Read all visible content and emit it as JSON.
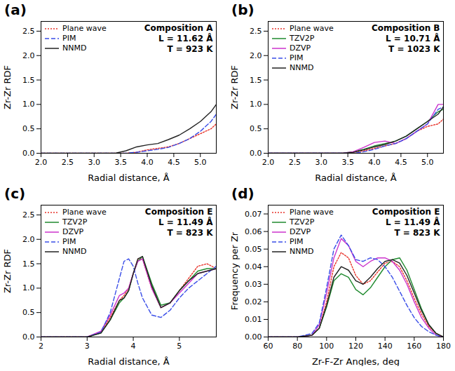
{
  "chart_data": [
    {
      "type": "line",
      "label": "(a)",
      "title": "Composition A",
      "annotations": [
        "L = 11.62 Å",
        "T = 923 K"
      ],
      "x_label": "Radial distance, Å",
      "y_label": "Zr-Zr RDF",
      "x": [
        2.0,
        3.0,
        3.4,
        3.6,
        3.8,
        4.0,
        4.2,
        4.4,
        4.6,
        4.8,
        5.0,
        5.2,
        5.3
      ],
      "series": [
        {
          "name": "Plane wave",
          "color": "#e8332a",
          "line_style": "dotted",
          "values": [
            0,
            0,
            0,
            0,
            0.02,
            0.07,
            0.1,
            0.13,
            0.2,
            0.3,
            0.4,
            0.5,
            0.6
          ]
        },
        {
          "name": "PIM",
          "color": "#3a4ee8",
          "line_style": "dashed",
          "values": [
            0,
            0,
            0,
            0,
            0.02,
            0.05,
            0.08,
            0.12,
            0.2,
            0.3,
            0.45,
            0.65,
            0.8
          ]
        },
        {
          "name": "NNMD",
          "color": "#222222",
          "line_style": "solid",
          "values": [
            0,
            0,
            0,
            0.05,
            0.13,
            0.17,
            0.2,
            0.28,
            0.37,
            0.5,
            0.65,
            0.85,
            1.0
          ]
        }
      ],
      "xlim": [
        2.0,
        5.3
      ],
      "xticks": [
        {
          "value": 2.0,
          "label": "2.0"
        },
        {
          "value": 2.5,
          "label": "2.5"
        },
        {
          "value": 3.0,
          "label": "3.0"
        },
        {
          "value": 3.5,
          "label": "3.5"
        },
        {
          "value": 4.0,
          "label": "4.0"
        },
        {
          "value": 4.5,
          "label": "4.5"
        },
        {
          "value": 5.0,
          "label": "5.0"
        }
      ],
      "ylim": [
        0,
        2.7
      ],
      "yticks": [
        {
          "value": 0,
          "label": "0.0"
        },
        {
          "value": 0.5,
          "label": "0.5"
        },
        {
          "value": 1.0,
          "label": "1.0"
        },
        {
          "value": 1.5,
          "label": "1.5"
        },
        {
          "value": 2.0,
          "label": "2.0"
        },
        {
          "value": 2.5,
          "label": "2.5"
        }
      ],
      "legend": "upper left",
      "grid": false
    },
    {
      "type": "line",
      "label": "(b)",
      "title": "Composition B",
      "annotations": [
        "L = 10.71 Å",
        "T = 1023 K"
      ],
      "x_label": "Radial distance, Å",
      "y_label": "Zr-Zr RDF",
      "x": [
        2.0,
        3.0,
        3.4,
        3.6,
        3.8,
        4.0,
        4.2,
        4.4,
        4.6,
        4.8,
        5.0,
        5.2,
        5.3
      ],
      "series": [
        {
          "name": "Plane wave",
          "color": "#e8332a",
          "line_style": "dotted",
          "values": [
            0,
            0,
            0,
            0.02,
            0.05,
            0.1,
            0.15,
            0.2,
            0.3,
            0.45,
            0.55,
            0.6,
            0.7
          ]
        },
        {
          "name": "TZV2P",
          "color": "#1f8a2e",
          "line_style": "solid",
          "values": [
            0,
            0,
            0,
            0.03,
            0.08,
            0.15,
            0.2,
            0.25,
            0.35,
            0.5,
            0.65,
            0.85,
            0.9
          ]
        },
        {
          "name": "DZVP",
          "color": "#cc33cc",
          "line_style": "solid",
          "values": [
            0,
            0,
            0,
            0.03,
            0.12,
            0.22,
            0.25,
            0.2,
            0.3,
            0.45,
            0.6,
            1.0,
            1.0
          ]
        },
        {
          "name": "PIM",
          "color": "#3a4ee8",
          "line_style": "dashed",
          "values": [
            0,
            0,
            0,
            0,
            0.03,
            0.08,
            0.15,
            0.2,
            0.3,
            0.45,
            0.6,
            0.9,
            0.95
          ]
        },
        {
          "name": "NNMD",
          "color": "#222222",
          "line_style": "solid",
          "values": [
            0,
            0,
            0,
            0.02,
            0.07,
            0.13,
            0.18,
            0.25,
            0.35,
            0.5,
            0.65,
            0.8,
            0.95
          ]
        }
      ],
      "xlim": [
        2.0,
        5.3
      ],
      "xticks": [
        {
          "value": 2.0,
          "label": "2.0"
        },
        {
          "value": 2.5,
          "label": "2.5"
        },
        {
          "value": 3.0,
          "label": "3.0"
        },
        {
          "value": 3.5,
          "label": "3.5"
        },
        {
          "value": 4.0,
          "label": "4.0"
        },
        {
          "value": 4.5,
          "label": "4.5"
        },
        {
          "value": 5.0,
          "label": "5.0"
        }
      ],
      "ylim": [
        0,
        2.7
      ],
      "yticks": [
        {
          "value": 0,
          "label": "0.0"
        },
        {
          "value": 0.5,
          "label": "0.5"
        },
        {
          "value": 1.0,
          "label": "1.0"
        },
        {
          "value": 1.5,
          "label": "1.5"
        },
        {
          "value": 2.0,
          "label": "2.0"
        },
        {
          "value": 2.5,
          "label": "2.5"
        }
      ],
      "legend": "upper left",
      "grid": false
    },
    {
      "type": "line",
      "label": "(c)",
      "title": "Composition E",
      "annotations": [
        "L = 11.49 Å",
        "T = 823 K"
      ],
      "x_label": "Radial distance, Å",
      "y_label": "Zr-Zr RDF",
      "x": [
        2.0,
        3.0,
        3.3,
        3.5,
        3.7,
        3.8,
        3.9,
        4.0,
        4.1,
        4.2,
        4.4,
        4.6,
        4.8,
        5.0,
        5.2,
        5.4,
        5.6,
        5.8
      ],
      "series": [
        {
          "name": "Plane wave",
          "color": "#e8332a",
          "line_style": "dotted",
          "values": [
            0,
            0,
            0.1,
            0.4,
            0.75,
            0.85,
            1.0,
            1.3,
            1.6,
            1.6,
            1.0,
            0.6,
            0.7,
            0.95,
            1.2,
            1.45,
            1.5,
            1.4
          ]
        },
        {
          "name": "TZV2P",
          "color": "#1f8a2e",
          "line_style": "solid",
          "values": [
            0,
            0,
            0.08,
            0.35,
            0.7,
            0.8,
            0.95,
            1.3,
            1.55,
            1.65,
            1.1,
            0.65,
            0.7,
            0.95,
            1.15,
            1.35,
            1.4,
            1.4
          ]
        },
        {
          "name": "DZVP",
          "color": "#cc33cc",
          "line_style": "solid",
          "values": [
            0,
            0,
            0.12,
            0.45,
            0.85,
            0.9,
            1.0,
            1.3,
            1.55,
            1.6,
            1.0,
            0.6,
            0.7,
            0.9,
            1.1,
            1.3,
            1.35,
            1.4
          ]
        },
        {
          "name": "PIM",
          "color": "#3a4ee8",
          "line_style": "dashed",
          "values": [
            0,
            0,
            0.1,
            0.5,
            1.2,
            1.55,
            1.6,
            1.45,
            1.1,
            0.8,
            0.45,
            0.4,
            0.55,
            0.8,
            1.0,
            1.15,
            1.3,
            1.45
          ]
        },
        {
          "name": "NNMD",
          "color": "#222222",
          "line_style": "solid",
          "values": [
            0,
            0,
            0.08,
            0.35,
            0.75,
            0.8,
            0.95,
            1.3,
            1.6,
            1.65,
            1.05,
            0.6,
            0.7,
            0.95,
            1.15,
            1.3,
            1.35,
            1.4
          ]
        }
      ],
      "xlim": [
        2.0,
        5.8
      ],
      "xticks": [
        2,
        3,
        4,
        5
      ],
      "ylim": [
        0,
        2.7
      ],
      "yticks": [
        {
          "value": 0,
          "label": "0.0"
        },
        {
          "value": 0.5,
          "label": "0.5"
        },
        {
          "value": 1.0,
          "label": "1.0"
        },
        {
          "value": 1.5,
          "label": "1.5"
        },
        {
          "value": 2.0,
          "label": "2.0"
        },
        {
          "value": 2.5,
          "label": "2.5"
        }
      ],
      "legend": "upper left",
      "grid": false
    },
    {
      "type": "line",
      "label": "(d)",
      "title": "Composition E",
      "annotations": [
        "L = 11.49 Å",
        "T = 823 K"
      ],
      "x_label": "Zr-F-Zr Angles, deg",
      "y_label": "Frequency per Zr",
      "x": [
        60,
        80,
        90,
        95,
        100,
        105,
        110,
        115,
        120,
        125,
        130,
        135,
        140,
        145,
        150,
        155,
        160,
        165,
        170,
        175,
        180
      ],
      "series": [
        {
          "name": "Plane wave",
          "color": "#e8332a",
          "line_style": "dotted",
          "values": [
            0,
            0,
            0.001,
            0.005,
            0.02,
            0.04,
            0.048,
            0.045,
            0.035,
            0.03,
            0.032,
            0.037,
            0.042,
            0.043,
            0.04,
            0.032,
            0.022,
            0.013,
            0.006,
            0.002,
            0
          ]
        },
        {
          "name": "TZV2P",
          "color": "#1f8a2e",
          "line_style": "solid",
          "values": [
            0,
            0,
            0.001,
            0.005,
            0.017,
            0.032,
            0.036,
            0.034,
            0.027,
            0.024,
            0.028,
            0.034,
            0.04,
            0.044,
            0.045,
            0.038,
            0.027,
            0.016,
            0.007,
            0.002,
            0
          ]
        },
        {
          "name": "DZVP",
          "color": "#cc33cc",
          "line_style": "solid",
          "values": [
            0,
            0,
            0.001,
            0.007,
            0.025,
            0.045,
            0.056,
            0.052,
            0.043,
            0.04,
            0.043,
            0.045,
            0.045,
            0.043,
            0.038,
            0.03,
            0.02,
            0.011,
            0.005,
            0.001,
            0
          ]
        },
        {
          "name": "PIM",
          "color": "#3a4ee8",
          "line_style": "dashed",
          "values": [
            0,
            0,
            0.002,
            0.008,
            0.028,
            0.05,
            0.058,
            0.052,
            0.044,
            0.043,
            0.045,
            0.044,
            0.04,
            0.034,
            0.026,
            0.018,
            0.011,
            0.006,
            0.003,
            0.001,
            0
          ]
        },
        {
          "name": "NNMD",
          "color": "#222222",
          "line_style": "solid",
          "values": [
            0,
            0,
            0.001,
            0.005,
            0.018,
            0.034,
            0.04,
            0.038,
            0.032,
            0.03,
            0.034,
            0.039,
            0.043,
            0.044,
            0.042,
            0.035,
            0.025,
            0.015,
            0.007,
            0.002,
            0
          ]
        }
      ],
      "xlim": [
        60,
        180
      ],
      "xticks": [
        60,
        80,
        100,
        120,
        140,
        160,
        180
      ],
      "ylim": [
        0,
        0.075
      ],
      "yticks": [
        {
          "value": 0,
          "label": "0.00"
        },
        {
          "value": 0.01,
          "label": "0.01"
        },
        {
          "value": 0.02,
          "label": "0.02"
        },
        {
          "value": 0.03,
          "label": "0.03"
        },
        {
          "value": 0.04,
          "label": "0.04"
        },
        {
          "value": 0.05,
          "label": "0.05"
        },
        {
          "value": 0.06,
          "label": "0.06"
        },
        {
          "value": 0.07,
          "label": "0.07"
        }
      ],
      "legend": "upper left",
      "grid": false
    }
  ]
}
